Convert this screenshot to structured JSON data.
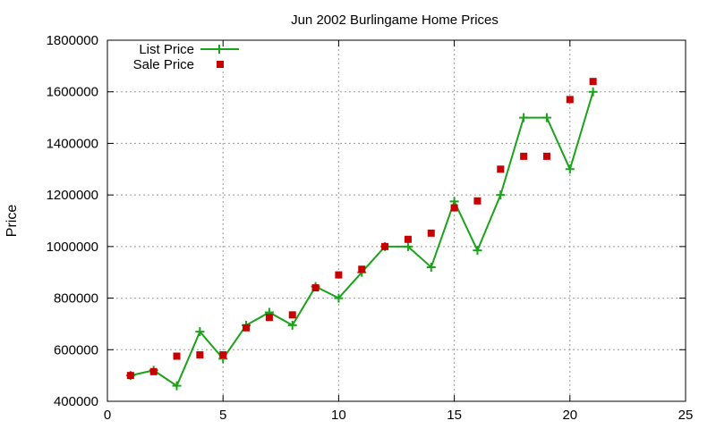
{
  "chart_data": {
    "type": "line",
    "title": "Jun 2002 Burlingame Home Prices",
    "xlabel": "",
    "ylabel": "Price",
    "xlim": [
      0,
      25
    ],
    "ylim": [
      400000,
      1800000
    ],
    "x_ticks": [
      0,
      5,
      10,
      15,
      20,
      25
    ],
    "y_ticks": [
      400000,
      600000,
      800000,
      1000000,
      1200000,
      1400000,
      1600000,
      1800000
    ],
    "grid": true,
    "legend_position": "top-left",
    "series": [
      {
        "name": "List Price",
        "style": "line-plus",
        "color": "#1aa31a",
        "x": [
          1,
          2,
          3,
          4,
          5,
          6,
          7,
          8,
          9,
          10,
          11,
          12,
          13,
          14,
          15,
          16,
          17,
          18,
          19,
          20,
          21
        ],
        "values": [
          500000,
          520000,
          460000,
          670000,
          565000,
          695000,
          745000,
          695000,
          845000,
          800000,
          900000,
          1000000,
          1000000,
          920000,
          1175000,
          985000,
          1200000,
          1500000,
          1500000,
          1300000,
          1600000
        ]
      },
      {
        "name": "Sale Price",
        "style": "points-square",
        "color": "#c80000",
        "x": [
          1,
          2,
          3,
          4,
          5,
          6,
          7,
          8,
          9,
          10,
          11,
          12,
          13,
          14,
          15,
          16,
          17,
          18,
          19,
          20,
          21
        ],
        "values": [
          500000,
          515000,
          575000,
          580000,
          580000,
          685000,
          725000,
          735000,
          840000,
          890000,
          912000,
          1000000,
          1028000,
          1052000,
          1150000,
          1177000,
          1300000,
          1350000,
          1350000,
          1570000,
          1640000
        ]
      }
    ]
  }
}
